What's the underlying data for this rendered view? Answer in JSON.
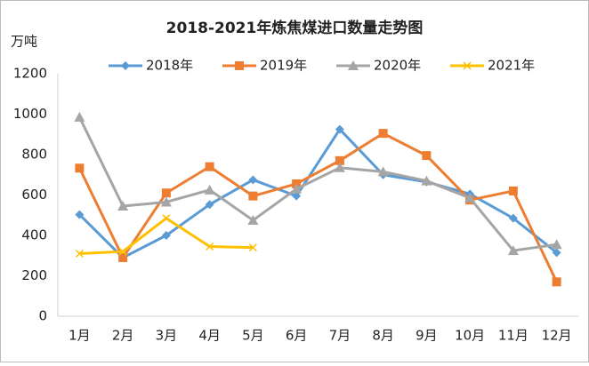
{
  "chart_data": {
    "type": "line",
    "title": "2018-2021年炼焦煤进口数量走势图",
    "y_label": "万吨",
    "categories": [
      "1月",
      "2月",
      "3月",
      "4月",
      "5月",
      "6月",
      "7月",
      "8月",
      "9月",
      "10月",
      "11月",
      "12月"
    ],
    "series": [
      {
        "name": "2018年",
        "color": "#5b9bd5",
        "marker": "diamond",
        "values": [
          503,
          290,
          400,
          553,
          675,
          595,
          925,
          700,
          665,
          605,
          485,
          315
        ]
      },
      {
        "name": "2019年",
        "color": "#ed7d31",
        "marker": "square",
        "values": [
          733,
          290,
          610,
          740,
          595,
          655,
          770,
          905,
          795,
          575,
          620,
          170
        ]
      },
      {
        "name": "2020年",
        "color": "#a5a5a5",
        "marker": "triangle",
        "values": [
          985,
          545,
          565,
          625,
          475,
          630,
          735,
          715,
          670,
          585,
          325,
          355
        ]
      },
      {
        "name": "2021年",
        "color": "#ffc000",
        "marker": "x",
        "values": [
          310,
          320,
          485,
          345,
          340,
          null,
          null,
          null,
          null,
          null,
          null,
          null
        ]
      }
    ],
    "ylim": [
      0,
      1200
    ],
    "yticks": [
      0,
      200,
      400,
      600,
      800,
      1000,
      1200
    ],
    "grid": false,
    "legend": "top"
  }
}
